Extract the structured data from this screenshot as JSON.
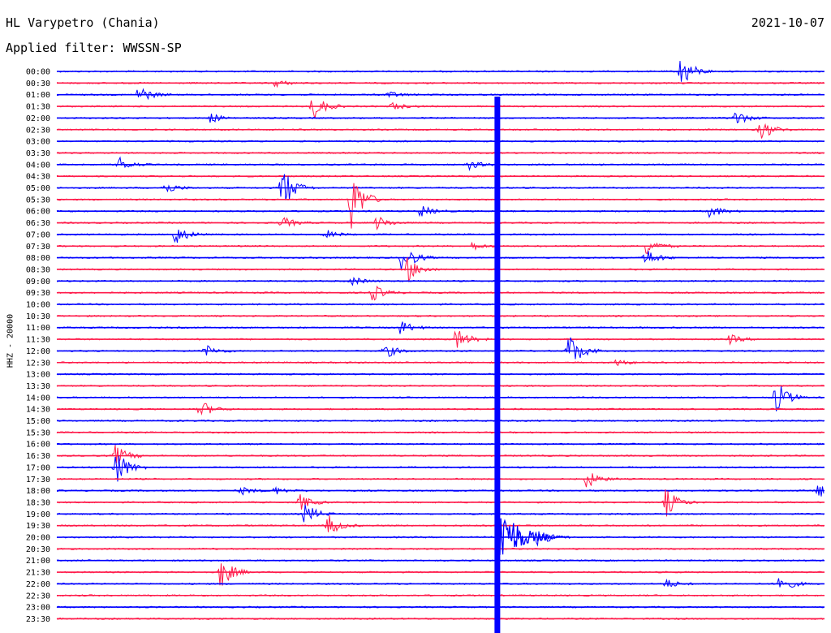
{
  "header": {
    "station": "HL Varypetro (Chania)",
    "date": "2021-10-07",
    "filter": "Applied filter: WWSSN-SP"
  },
  "chart_data": {
    "type": "line",
    "title": "HL Varypetro (Chania)",
    "subtitle": "Applied filter: WWSSN-SP",
    "ylabel": "HHZ - 20000",
    "row_labels": [
      "00:00",
      "00:30",
      "01:00",
      "01:30",
      "02:00",
      "02:30",
      "03:00",
      "03:30",
      "04:00",
      "04:30",
      "05:00",
      "05:30",
      "06:00",
      "06:30",
      "07:00",
      "07:30",
      "08:00",
      "08:30",
      "09:00",
      "09:30",
      "10:00",
      "10:30",
      "11:00",
      "11:30",
      "12:00",
      "12:30",
      "13:00",
      "13:30",
      "14:00",
      "14:30",
      "15:00",
      "15:30",
      "16:00",
      "16:30",
      "17:00",
      "17:30",
      "18:00",
      "18:30",
      "19:00",
      "19:30",
      "20:00",
      "20:30",
      "21:00",
      "21:30",
      "22:00",
      "22:30",
      "23:00",
      "23:30"
    ],
    "colors": [
      "#0000ff",
      "#ff1a4a"
    ],
    "x_unit": "minutes within row",
    "x_range": [
      0,
      30
    ],
    "grid": false,
    "events": [
      {
        "row": 0,
        "t": 24.4,
        "amp": 22
      },
      {
        "row": 1,
        "t": 8.5,
        "amp": 5
      },
      {
        "row": 2,
        "t": 3.2,
        "amp": 12
      },
      {
        "row": 2,
        "t": 12.9,
        "amp": 5
      },
      {
        "row": 3,
        "t": 10.0,
        "amp": 18
      },
      {
        "row": 3,
        "t": 13.1,
        "amp": 5
      },
      {
        "row": 4,
        "t": 6.0,
        "amp": 6
      },
      {
        "row": 4,
        "t": 26.5,
        "amp": 10
      },
      {
        "row": 5,
        "t": 27.5,
        "amp": 14
      },
      {
        "row": 8,
        "t": 2.4,
        "amp": 10
      },
      {
        "row": 8,
        "t": 16.1,
        "amp": 6
      },
      {
        "row": 10,
        "t": 4.2,
        "amp": 8
      },
      {
        "row": 10,
        "t": 8.8,
        "amp": 30
      },
      {
        "row": 11,
        "t": 11.5,
        "amp": 40
      },
      {
        "row": 12,
        "t": 14.2,
        "amp": 8
      },
      {
        "row": 12,
        "t": 25.5,
        "amp": 9
      },
      {
        "row": 13,
        "t": 8.8,
        "amp": 8
      },
      {
        "row": 13,
        "t": 12.5,
        "amp": 9
      },
      {
        "row": 14,
        "t": 4.6,
        "amp": 14
      },
      {
        "row": 14,
        "t": 10.5,
        "amp": 6
      },
      {
        "row": 15,
        "t": 16.2,
        "amp": 5
      },
      {
        "row": 15,
        "t": 23.0,
        "amp": 12
      },
      {
        "row": 16,
        "t": 13.5,
        "amp": 20
      },
      {
        "row": 16,
        "t": 23.0,
        "amp": 12
      },
      {
        "row": 17,
        "t": 13.7,
        "amp": 16
      },
      {
        "row": 18,
        "t": 11.5,
        "amp": 6
      },
      {
        "row": 19,
        "t": 12.3,
        "amp": 12
      },
      {
        "row": 22,
        "t": 13.4,
        "amp": 10
      },
      {
        "row": 23,
        "t": 15.6,
        "amp": 15
      },
      {
        "row": 23,
        "t": 26.3,
        "amp": 6
      },
      {
        "row": 24,
        "t": 5.8,
        "amp": 8
      },
      {
        "row": 24,
        "t": 12.8,
        "amp": 10
      },
      {
        "row": 24,
        "t": 20.0,
        "amp": 26
      },
      {
        "row": 25,
        "t": 21.8,
        "amp": 5
      },
      {
        "row": 28,
        "t": 28.1,
        "amp": 22
      },
      {
        "row": 29,
        "t": 5.6,
        "amp": 12
      },
      {
        "row": 33,
        "t": 2.3,
        "amp": 14
      },
      {
        "row": 34,
        "t": 2.3,
        "amp": 26
      },
      {
        "row": 35,
        "t": 20.7,
        "amp": 12
      },
      {
        "row": 36,
        "t": 7.2,
        "amp": 5
      },
      {
        "row": 36,
        "t": 8.5,
        "amp": 5
      },
      {
        "row": 36,
        "t": 29.7,
        "amp": 10
      },
      {
        "row": 37,
        "t": 9.5,
        "amp": 10
      },
      {
        "row": 37,
        "t": 23.8,
        "amp": 18
      },
      {
        "row": 38,
        "t": 9.7,
        "amp": 14
      },
      {
        "row": 39,
        "t": 10.6,
        "amp": 14
      },
      {
        "row": 40,
        "t": 18.8,
        "amp": 12
      },
      {
        "row": 43,
        "t": 6.4,
        "amp": 22
      },
      {
        "row": 44,
        "t": 23.8,
        "amp": 6
      },
      {
        "row": 44,
        "t": 28.2,
        "amp": 14
      }
    ],
    "main_event": {
      "t": 17.2,
      "start_row": 3,
      "end_row": 47,
      "peak_row": 40,
      "amp": 52
    }
  }
}
